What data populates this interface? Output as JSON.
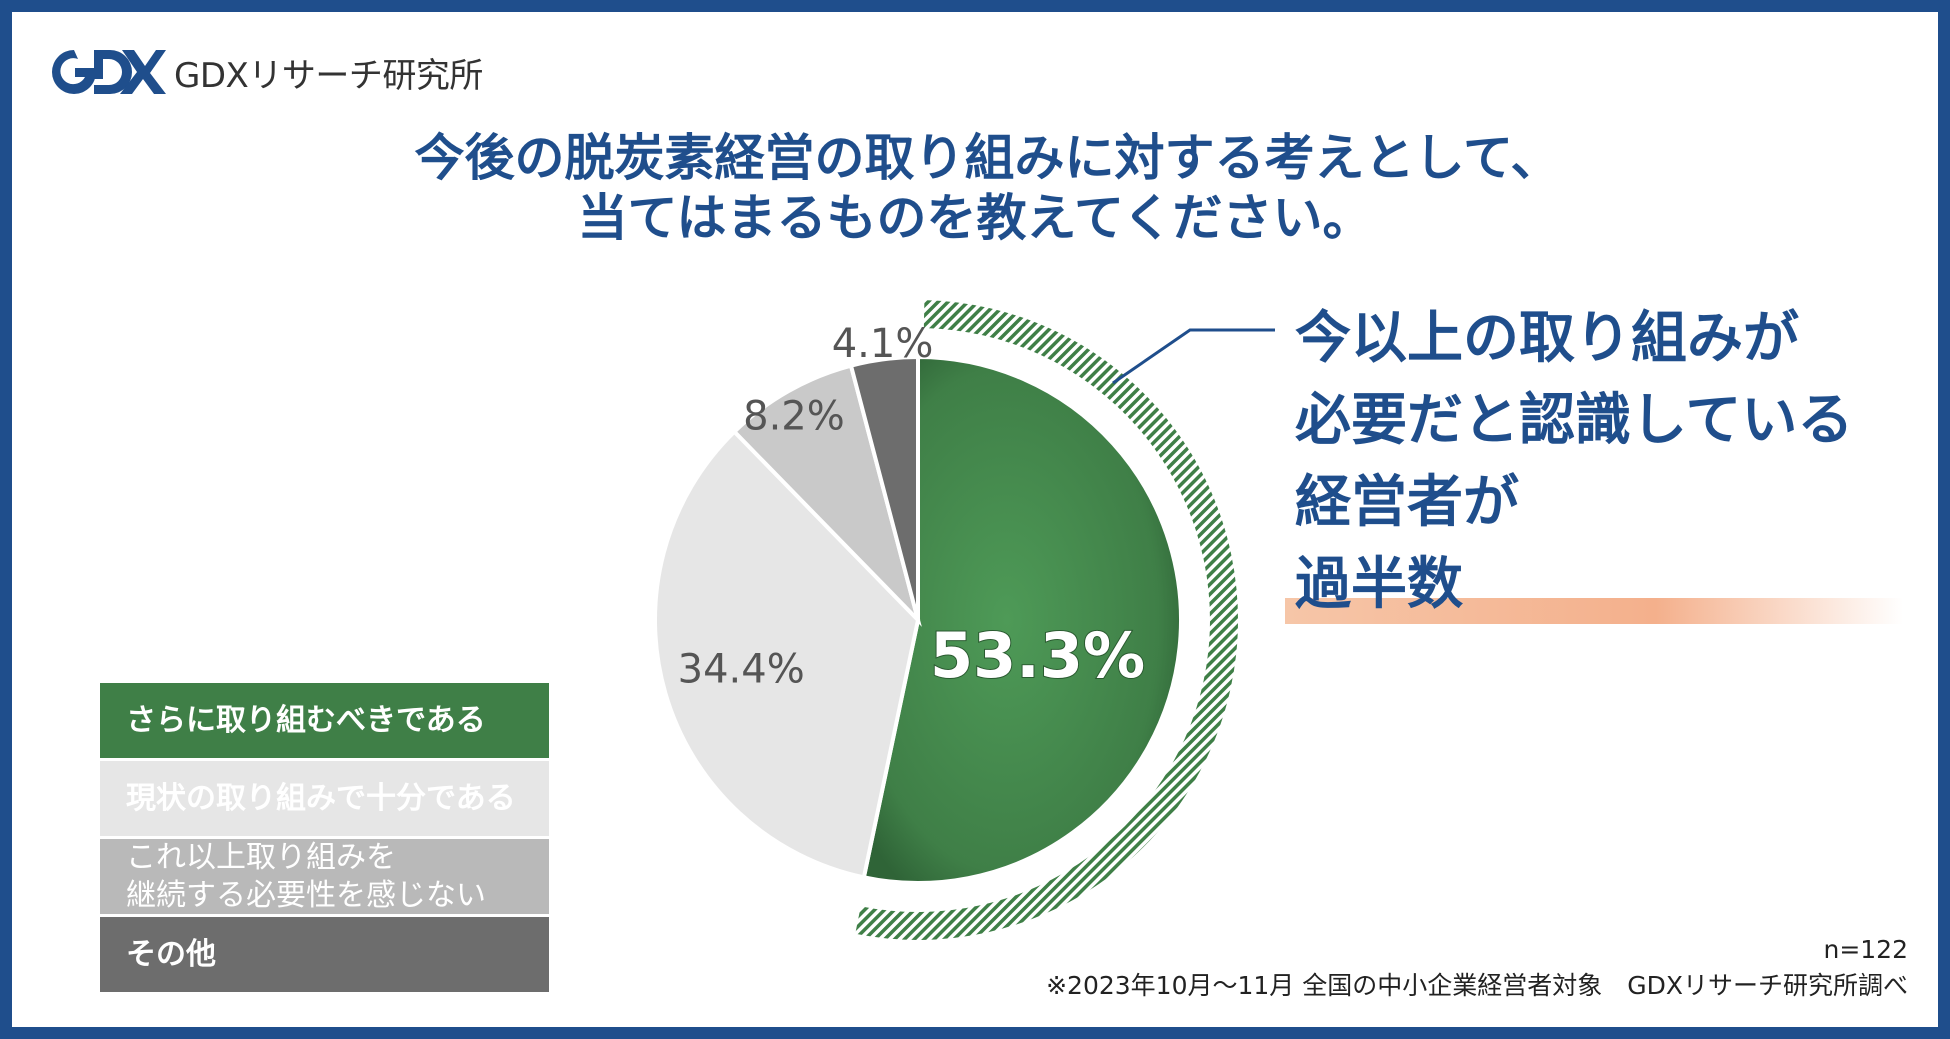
{
  "brand": {
    "logo_text": "GDXリサーチ研究所"
  },
  "title_lines": [
    "今後の脱炭素経営の取り組みに対する考えとして、",
    "当てはまるものを教えてください。"
  ],
  "callout": {
    "line1": "今以上の取り組みが",
    "line2": "必要だと認識している",
    "line3_prefix": "経営者が",
    "line3_highlight": "過半数"
  },
  "chart_data": {
    "type": "pie",
    "title": "今後の脱炭素経営の取り組みに対する考えとして、当てはまるものを教えてください。",
    "slices": [
      {
        "label": "さらに取り組むべきである",
        "value": 53.3,
        "display": "53.3%",
        "color": "#3f7f47"
      },
      {
        "label": "現状の取り組みで十分である",
        "value": 34.4,
        "display": "34.4%",
        "color": "#e6e6e6"
      },
      {
        "label": "これ以上取り組みを\n継続する必要性を感じない",
        "value": 8.2,
        "display": "8.2%",
        "color": "#c9c9c9"
      },
      {
        "label": "その他",
        "value": 4.1,
        "display": "4.1%",
        "color": "#6d6d6d"
      }
    ]
  },
  "legend": [
    {
      "label": "さらに取り組むべきである",
      "color": "#3f7f47"
    },
    {
      "label": "現状の取り組みで十分である",
      "color": "#e6e6e6"
    },
    {
      "label": "これ以上取り組みを\n継続する必要性を感じない",
      "color": "#b9b9b9"
    },
    {
      "label": "その他",
      "color": "#6d6d6d"
    }
  ],
  "footer": {
    "n": "n=122",
    "note": "※2023年10月～11月 全国の中小企業経営者対象　GDXリサーチ研究所調べ"
  }
}
